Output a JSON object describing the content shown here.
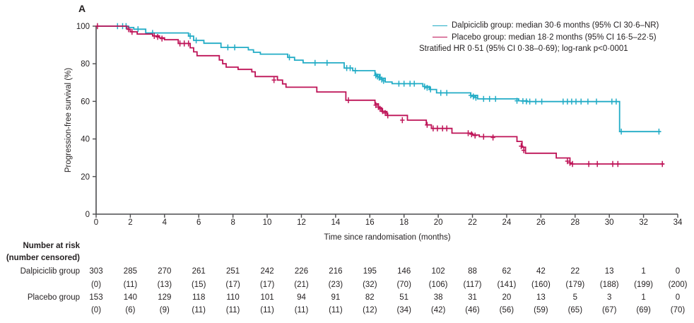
{
  "panel_label": "A",
  "colors": {
    "dalpiciclib": "#22ACC6",
    "placebo": "#BE1357",
    "axis": "#4C4C4E",
    "text": "#231F20"
  },
  "legend": {
    "items": [
      {
        "label": "Dalpiciclib group: median 30·6 months (95% CI 30·6–NR)",
        "color": "#22ACC6"
      },
      {
        "label": "Placebo group: median 18·2 months (95% CI 16·5–22·5)",
        "color": "#BE1357"
      }
    ],
    "note": "Stratified HR 0·51 (95% CI 0·38–0·69); log-rank p<0·0001"
  },
  "chart_data": {
    "type": "line",
    "subtype": "kaplan-meier-step",
    "title": "",
    "xlabel": "Time since randomisation (months)",
    "ylabel": "Progression-free survival (%)",
    "xlim": [
      0,
      34
    ],
    "ylim": [
      0,
      100
    ],
    "xticks": [
      0,
      2,
      4,
      6,
      8,
      10,
      12,
      14,
      16,
      18,
      20,
      22,
      24,
      26,
      28,
      30,
      32,
      34
    ],
    "yticks": [
      0,
      20,
      40,
      60,
      80,
      100
    ],
    "grid": false,
    "legend_position": "top-right",
    "series": [
      {
        "name": "Dalpiciclib group",
        "color": "#22ACC6",
        "end_time": 33.0,
        "steps": [
          [
            0,
            100
          ],
          [
            1.9,
            99.3
          ],
          [
            2.2,
            98.4
          ],
          [
            2.9,
            96.4
          ],
          [
            5.4,
            94.7
          ],
          [
            5.7,
            92.4
          ],
          [
            6.3,
            90.9
          ],
          [
            7.3,
            88.7
          ],
          [
            8.9,
            87.4
          ],
          [
            9.2,
            86.1
          ],
          [
            9.6,
            85.1
          ],
          [
            11.2,
            83.4
          ],
          [
            11.6,
            81.9
          ],
          [
            12.1,
            80.5
          ],
          [
            14.5,
            77.7
          ],
          [
            15.0,
            76.3
          ],
          [
            16.3,
            74.3
          ],
          [
            16.6,
            72.3
          ],
          [
            16.9,
            70.3
          ],
          [
            17.3,
            69.4
          ],
          [
            19.1,
            67.9
          ],
          [
            19.5,
            66.3
          ],
          [
            19.9,
            64.5
          ],
          [
            21.9,
            63.2
          ],
          [
            22.3,
            61.3
          ],
          [
            24.7,
            60.3
          ],
          [
            25.2,
            59.9
          ],
          [
            30.6,
            43.9
          ]
        ],
        "censors": [
          [
            1.25,
            100
          ],
          [
            1.55,
            100
          ],
          [
            1.75,
            100
          ],
          [
            2.45,
            98.4
          ],
          [
            3.3,
            96.4
          ],
          [
            5.5,
            94.7
          ],
          [
            5.85,
            92.4
          ],
          [
            7.7,
            88.7
          ],
          [
            8.1,
            88.7
          ],
          [
            11.3,
            83.4
          ],
          [
            12.8,
            80.5
          ],
          [
            13.5,
            80.5
          ],
          [
            14.65,
            77.7
          ],
          [
            14.85,
            77.7
          ],
          [
            15.15,
            76.3
          ],
          [
            16.35,
            73.8
          ],
          [
            16.45,
            73.2
          ],
          [
            16.55,
            72.6
          ],
          [
            16.7,
            71.6
          ],
          [
            16.8,
            70.9
          ],
          [
            17.7,
            69.4
          ],
          [
            18.0,
            69.4
          ],
          [
            18.35,
            69.4
          ],
          [
            18.6,
            69.4
          ],
          [
            19.2,
            67.9
          ],
          [
            19.35,
            67.2
          ],
          [
            19.55,
            66.3
          ],
          [
            20.15,
            64.5
          ],
          [
            20.5,
            64.5
          ],
          [
            21.9,
            63.2
          ],
          [
            22.05,
            62.6
          ],
          [
            22.2,
            61.9
          ],
          [
            22.65,
            61.3
          ],
          [
            23.0,
            61.3
          ],
          [
            23.35,
            61.3
          ],
          [
            24.6,
            60.3
          ],
          [
            24.95,
            60.1
          ],
          [
            25.15,
            60.0
          ],
          [
            25.35,
            59.9
          ],
          [
            25.7,
            59.9
          ],
          [
            26.05,
            59.9
          ],
          [
            27.3,
            59.9
          ],
          [
            27.55,
            59.9
          ],
          [
            27.8,
            59.9
          ],
          [
            28.05,
            59.9
          ],
          [
            28.35,
            59.9
          ],
          [
            28.75,
            59.9
          ],
          [
            29.25,
            59.9
          ],
          [
            30.15,
            59.9
          ],
          [
            30.4,
            59.9
          ],
          [
            30.7,
            43.9
          ],
          [
            32.9,
            43.9
          ]
        ]
      },
      {
        "name": "Placebo group",
        "color": "#BE1357",
        "end_time": 33.2,
        "steps": [
          [
            0,
            100
          ],
          [
            1.8,
            98.4
          ],
          [
            2.0,
            97.0
          ],
          [
            2.4,
            95.8
          ],
          [
            3.3,
            94.8
          ],
          [
            3.7,
            93.8
          ],
          [
            4.0,
            92.8
          ],
          [
            4.8,
            90.8
          ],
          [
            5.5,
            88.5
          ],
          [
            5.7,
            86.3
          ],
          [
            5.9,
            84.3
          ],
          [
            7.2,
            82.0
          ],
          [
            7.4,
            80.0
          ],
          [
            7.6,
            78.2
          ],
          [
            8.3,
            77.0
          ],
          [
            9.1,
            75.7
          ],
          [
            9.3,
            73.2
          ],
          [
            10.6,
            71.3
          ],
          [
            10.9,
            69.3
          ],
          [
            11.1,
            67.5
          ],
          [
            12.9,
            65.0
          ],
          [
            14.6,
            60.6
          ],
          [
            16.3,
            58.7
          ],
          [
            16.5,
            56.6
          ],
          [
            16.7,
            54.6
          ],
          [
            17.0,
            52.5
          ],
          [
            18.2,
            50.0
          ],
          [
            19.3,
            47.5
          ],
          [
            19.6,
            45.6
          ],
          [
            20.8,
            43.1
          ],
          [
            22.0,
            42.1
          ],
          [
            22.4,
            41.2
          ],
          [
            24.6,
            38.7
          ],
          [
            24.9,
            35.6
          ],
          [
            25.1,
            32.4
          ],
          [
            26.9,
            29.9
          ],
          [
            27.7,
            26.7
          ]
        ],
        "censors": [
          [
            0.08,
            100
          ],
          [
            1.9,
            98.4
          ],
          [
            2.1,
            97.0
          ],
          [
            3.4,
            94.8
          ],
          [
            3.6,
            94.3
          ],
          [
            3.85,
            93.4
          ],
          [
            4.9,
            90.8
          ],
          [
            5.15,
            90.8
          ],
          [
            5.4,
            90.8
          ],
          [
            10.4,
            71.3
          ],
          [
            14.75,
            60.6
          ],
          [
            16.35,
            58.0
          ],
          [
            16.5,
            57.0
          ],
          [
            16.6,
            56.0
          ],
          [
            16.75,
            54.8
          ],
          [
            16.9,
            53.8
          ],
          [
            17.05,
            52.5
          ],
          [
            17.9,
            50.0
          ],
          [
            19.35,
            47.5
          ],
          [
            19.7,
            45.6
          ],
          [
            19.95,
            45.6
          ],
          [
            20.25,
            45.6
          ],
          [
            20.5,
            45.6
          ],
          [
            21.75,
            43.1
          ],
          [
            21.95,
            42.5
          ],
          [
            22.15,
            41.8
          ],
          [
            22.65,
            41.2
          ],
          [
            23.2,
            40.8
          ],
          [
            24.85,
            36.2
          ],
          [
            25.0,
            34.0
          ],
          [
            27.55,
            28.2
          ],
          [
            27.7,
            27.3
          ],
          [
            27.85,
            26.7
          ],
          [
            28.8,
            26.7
          ],
          [
            29.3,
            26.7
          ],
          [
            30.2,
            26.7
          ],
          [
            30.5,
            26.7
          ],
          [
            33.1,
            26.7
          ]
        ]
      }
    ]
  },
  "risk_table": {
    "header": "Number at risk",
    "subheader": "(number censored)",
    "timepoints": [
      0,
      2,
      4,
      6,
      8,
      10,
      12,
      14,
      16,
      18,
      20,
      22,
      24,
      26,
      28,
      30,
      32,
      34
    ],
    "rows": [
      {
        "label": "Dalpiciclib group",
        "at_risk": [
          303,
          285,
          270,
          261,
          251,
          242,
          226,
          216,
          195,
          146,
          102,
          88,
          62,
          42,
          22,
          13,
          1,
          0
        ],
        "censored": [
          "(0)",
          "(11)",
          "(13)",
          "(15)",
          "(17)",
          "(17)",
          "(21)",
          "(23)",
          "(32)",
          "(70)",
          "(106)",
          "(117)",
          "(141)",
          "(160)",
          "(179)",
          "(188)",
          "(199)",
          "(200)"
        ]
      },
      {
        "label": "Placebo group",
        "at_risk": [
          153,
          140,
          129,
          118,
          110,
          101,
          94,
          91,
          82,
          51,
          38,
          31,
          20,
          13,
          5,
          3,
          1,
          0
        ],
        "censored": [
          "(0)",
          "(6)",
          "(9)",
          "(11)",
          "(11)",
          "(11)",
          "(11)",
          "(11)",
          "(12)",
          "(34)",
          "(42)",
          "(46)",
          "(56)",
          "(59)",
          "(65)",
          "(67)",
          "(69)",
          "(70)"
        ]
      }
    ]
  }
}
